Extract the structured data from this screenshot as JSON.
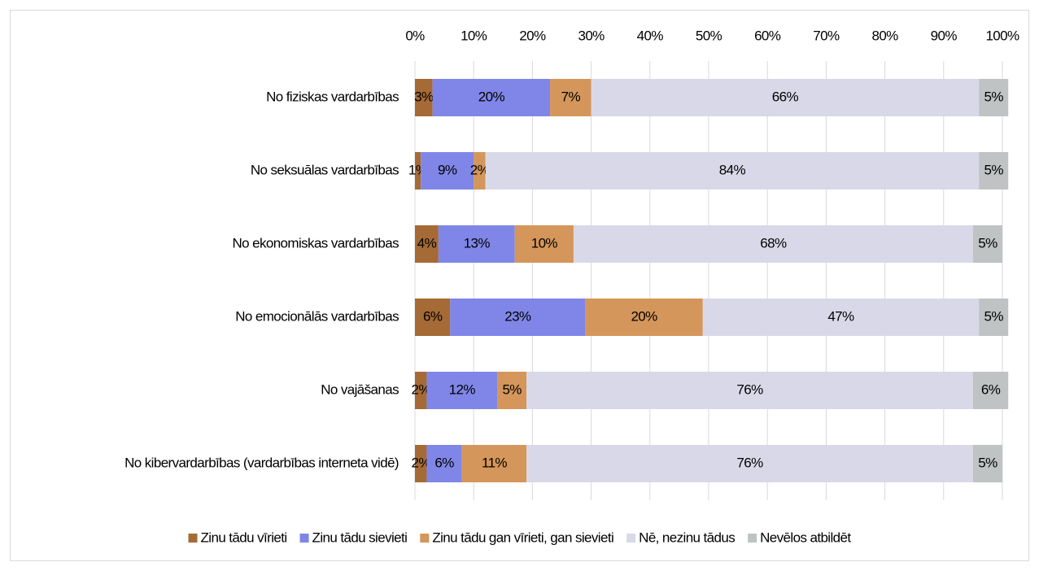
{
  "chart_data": {
    "type": "stacked-bar-horizontal",
    "categories": [
      "No fiziskas vardarbības",
      "No seksuālas vardarbības",
      "No ekonomiskas vardarbības",
      "No emocionālās vardarbības",
      "No vajāšanas",
      "No kibervardarbības (vardarbības interneta vidē)"
    ],
    "series": [
      {
        "name": "Zinu tādu vīrieti",
        "color": "#a56a35",
        "values": [
          3,
          1,
          4,
          6,
          2,
          2
        ],
        "value_labels": [
          "3%",
          "1%",
          "4%",
          "6%",
          "2%",
          "2%"
        ]
      },
      {
        "name": "Zinu tādu sievieti",
        "color": "#7f86e8",
        "values": [
          20,
          9,
          13,
          23,
          12,
          6
        ],
        "value_labels": [
          "20%",
          "9%",
          "13%",
          "23%",
          "12%",
          "6%"
        ]
      },
      {
        "name": "Zinu tādu gan vīrieti, gan sievieti",
        "color": "#d4965a",
        "values": [
          7,
          2,
          10,
          20,
          5,
          11
        ],
        "value_labels": [
          "7%",
          "2%",
          "10%",
          "20%",
          "5%",
          "11%"
        ]
      },
      {
        "name": "Nē, nezinu tādus",
        "color": "#d9d8e8",
        "values": [
          66,
          84,
          68,
          47,
          76,
          76
        ],
        "value_labels": [
          "66%",
          "84%",
          "68%",
          "47%",
          "76%",
          "76%"
        ]
      },
      {
        "name": "Nevēlos atbildēt",
        "color": "#bfc3c3",
        "values": [
          5,
          5,
          5,
          5,
          6,
          5
        ],
        "value_labels": [
          "5%",
          "5%",
          "5%",
          "5%",
          "6%",
          "5%"
        ]
      }
    ],
    "xlim": [
      0,
      100
    ],
    "xticks": [
      {
        "value": 0,
        "label": "0%"
      },
      {
        "value": 10,
        "label": "10%"
      },
      {
        "value": 20,
        "label": "20%"
      },
      {
        "value": 30,
        "label": "30%"
      },
      {
        "value": 40,
        "label": "40%"
      },
      {
        "value": 50,
        "label": "50%"
      },
      {
        "value": 60,
        "label": "60%"
      },
      {
        "value": 70,
        "label": "70%"
      },
      {
        "value": 80,
        "label": "80%"
      },
      {
        "value": 90,
        "label": "90%"
      },
      {
        "value": 100,
        "label": "100%"
      }
    ],
    "grid": true,
    "legend": "bottom"
  }
}
